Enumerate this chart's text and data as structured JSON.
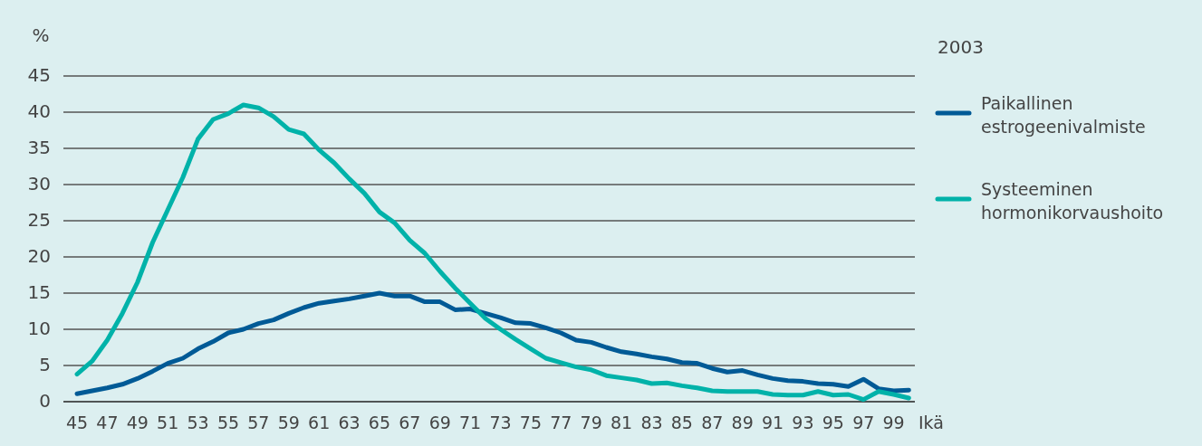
{
  "chart_data": {
    "type": "line",
    "ylabel": "%",
    "xlabel": "Ikä",
    "legend_title": "2003",
    "x": [
      45,
      46,
      47,
      48,
      49,
      50,
      51,
      52,
      53,
      54,
      55,
      56,
      57,
      58,
      59,
      60,
      61,
      62,
      63,
      64,
      65,
      66,
      67,
      68,
      69,
      70,
      71,
      72,
      73,
      74,
      75,
      76,
      77,
      78,
      79,
      80,
      81,
      82,
      83,
      84,
      85,
      86,
      87,
      88,
      89,
      90,
      91,
      92,
      93,
      94,
      95,
      96,
      97,
      98,
      99,
      100
    ],
    "series": [
      {
        "name": "Paikallinen estrogeenivalmiste",
        "color": "#005a96",
        "values": [
          1.1,
          1.5,
          1.9,
          2.4,
          3.2,
          4.2,
          5.3,
          6,
          7.3,
          8.3,
          9.5,
          10,
          10.8,
          11.3,
          12.2,
          13,
          13.6,
          13.9,
          14.2,
          14.6,
          15,
          14.6,
          14.6,
          13.8,
          13.8,
          12.7,
          12.8,
          12.2,
          11.6,
          10.9,
          10.8,
          10.2,
          9.5,
          8.5,
          8.2,
          7.5,
          6.9,
          6.6,
          6.2,
          5.9,
          5.4,
          5.3,
          4.6,
          4.1,
          4.3,
          3.7,
          3.2,
          2.9,
          2.8,
          2.5,
          2.4,
          2.1,
          3.1,
          1.8,
          1.5,
          1.6
        ]
      },
      {
        "name": "Systeeminen hormonikorvaushoito",
        "color": "#00b2a9",
        "values": [
          3.8,
          5.6,
          8.5,
          12.2,
          16.5,
          22,
          26.5,
          31,
          36.3,
          39,
          39.8,
          41,
          40.6,
          39.4,
          37.6,
          37,
          34.8,
          33,
          30.8,
          28.8,
          26.2,
          24.7,
          22.3,
          20.5,
          18,
          15.7,
          13.6,
          11.5,
          10,
          8.6,
          7.3,
          6,
          5.4,
          4.8,
          4.4,
          3.6,
          3.3,
          3,
          2.5,
          2.6,
          2.2,
          1.9,
          1.5,
          1.4,
          1.4,
          1.4,
          1,
          0.9,
          0.9,
          1.4,
          0.9,
          1,
          0.3,
          1.4,
          1,
          0.5
        ]
      }
    ],
    "xlim": [
      44.1,
      100.4
    ],
    "xticks": [
      45,
      47,
      49,
      51,
      53,
      55,
      57,
      59,
      61,
      63,
      65,
      67,
      69,
      71,
      73,
      75,
      77,
      79,
      81,
      83,
      85,
      87,
      89,
      91,
      93,
      95,
      97,
      99
    ],
    "ylim": [
      0,
      45
    ],
    "yticks": [
      0,
      5,
      10,
      15,
      20,
      25,
      30,
      35,
      40,
      45
    ],
    "grid": "y",
    "legend": "right",
    "marker": "none",
    "line_style": "solid"
  }
}
